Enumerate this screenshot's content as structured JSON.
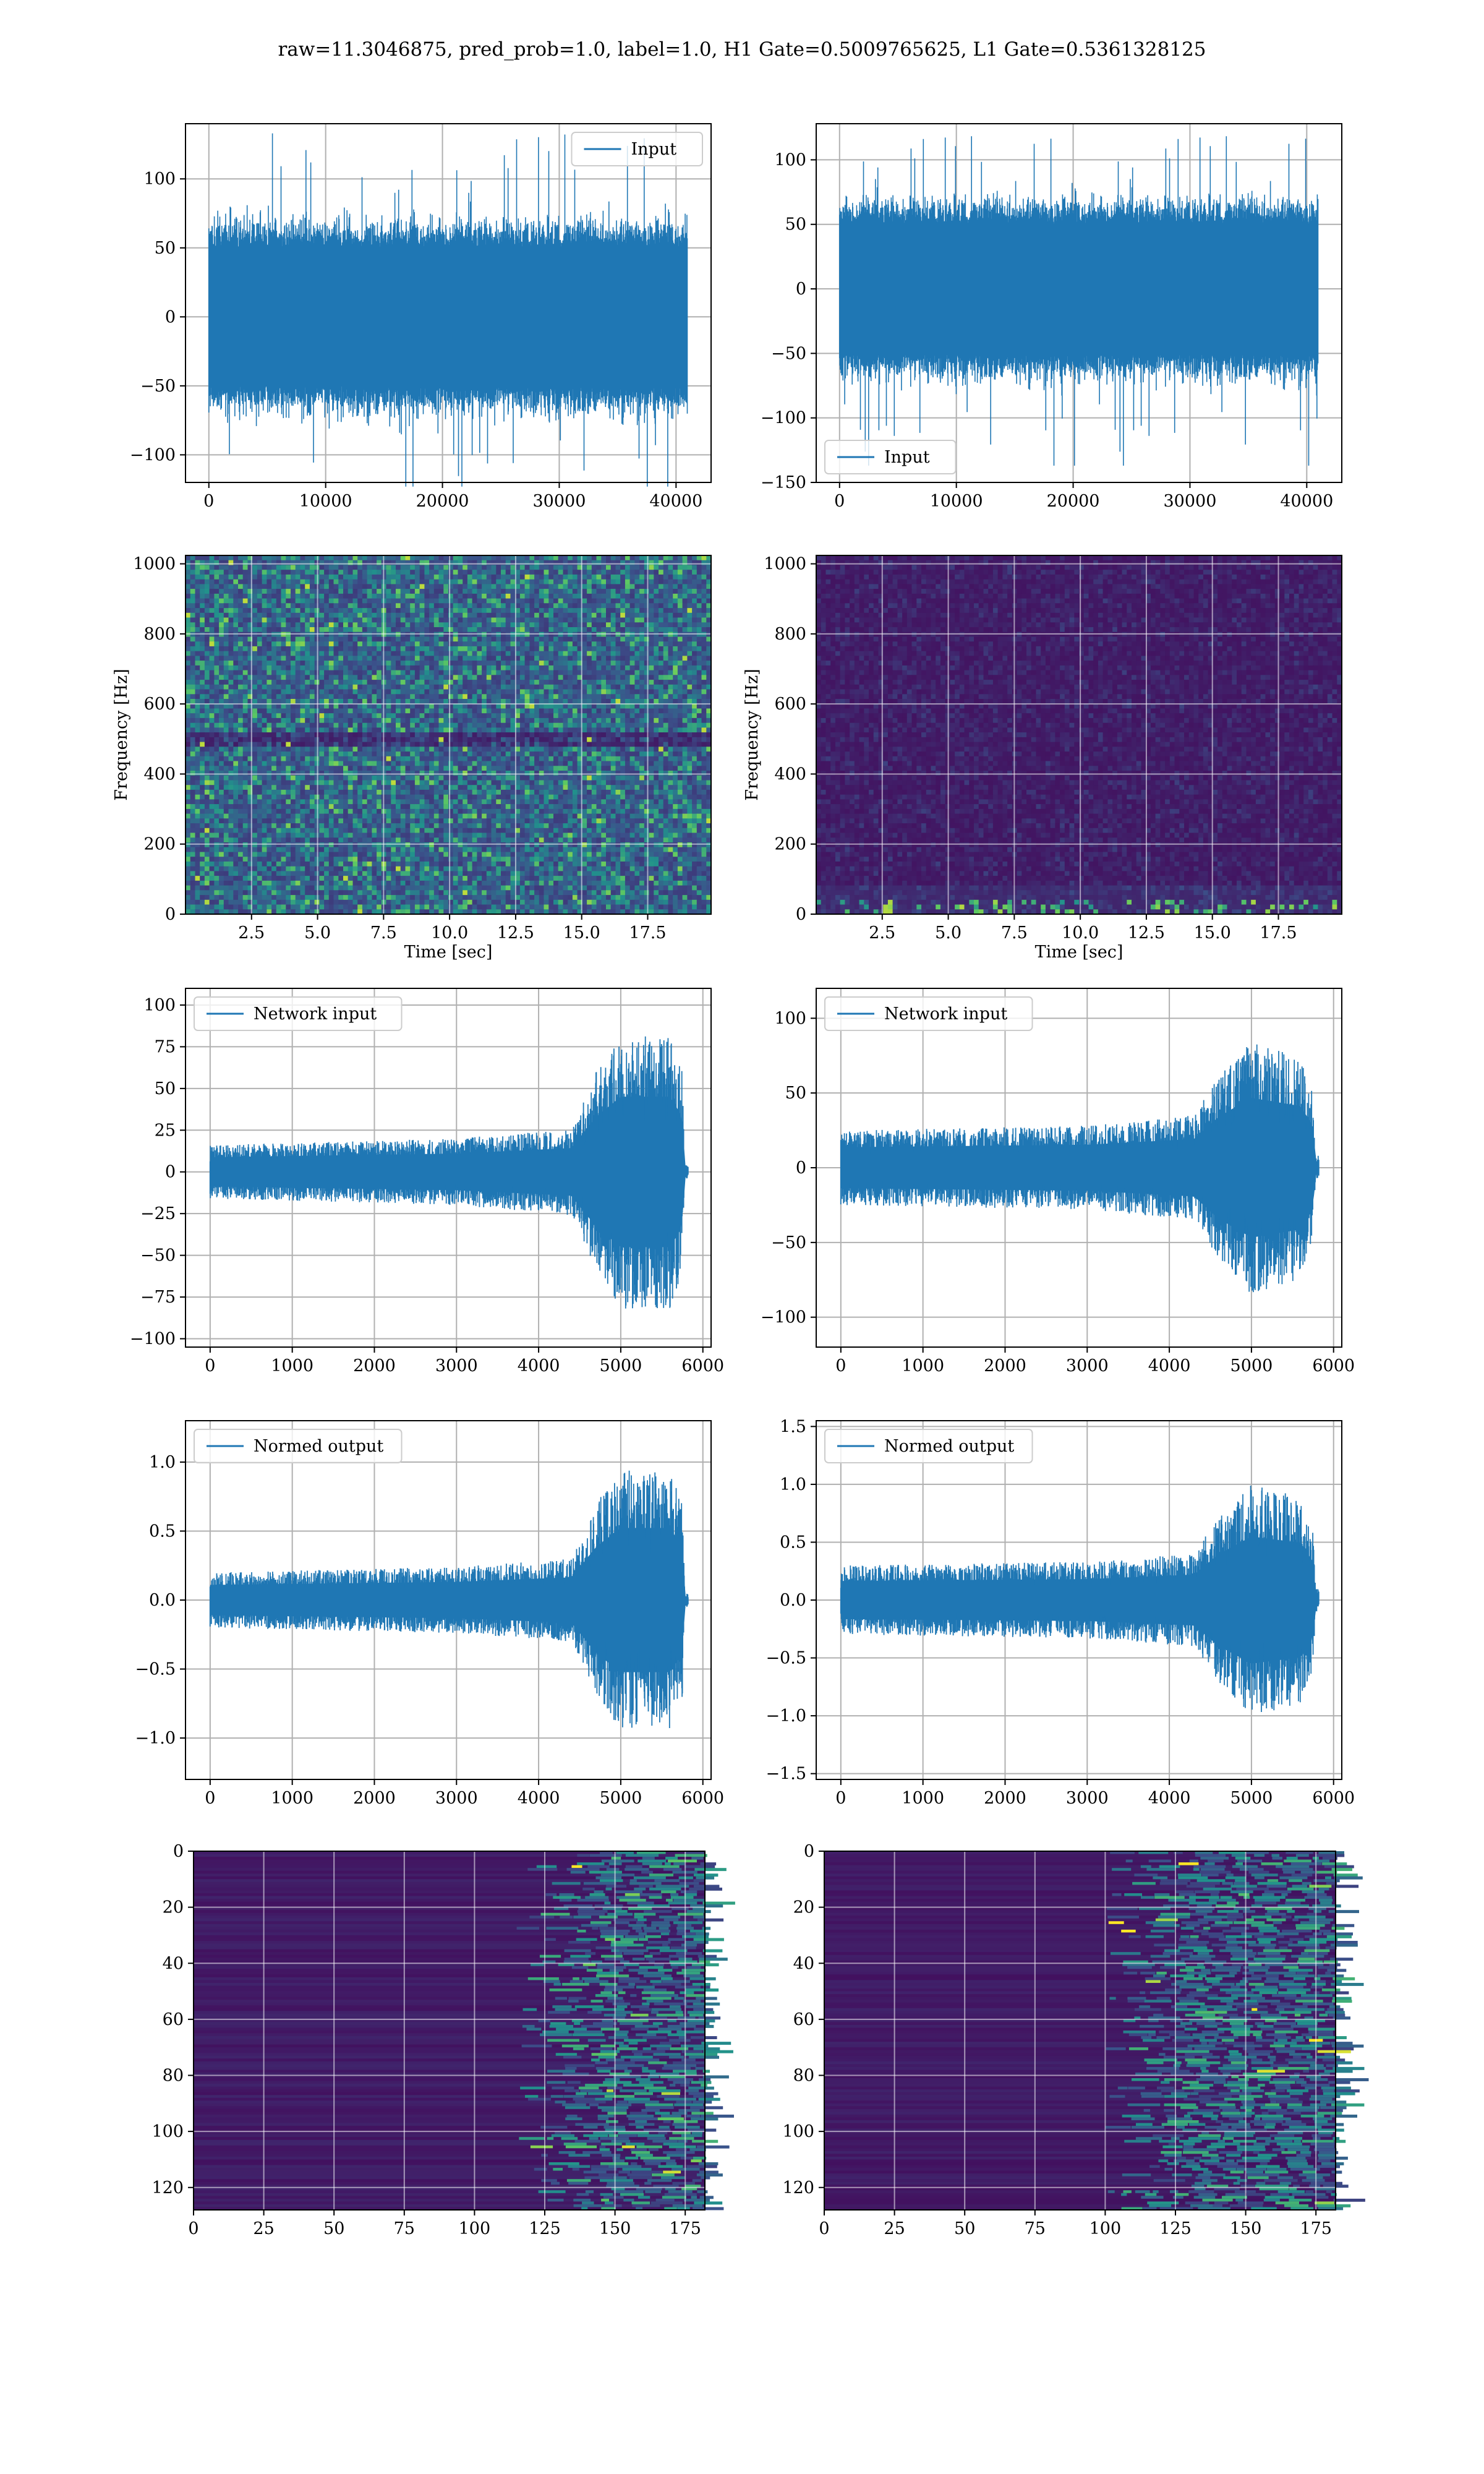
{
  "suptitle": "raw=11.3046875, pred_prob=1.0, label=1.0, H1 Gate=0.5009765625, L1 Gate=0.5361328125",
  "colors": {
    "line": "#1f77b4",
    "grid": "#b0b0b0",
    "viridis_low": "#440154",
    "viridis_mid": "#21918c",
    "viridis_high": "#fde725"
  },
  "chart_data": [
    {
      "id": "h1-input",
      "type": "line",
      "series": [
        {
          "name": "Input"
        }
      ],
      "legend": "upper right",
      "xlim": [
        -2000,
        43000
      ],
      "ylim": [
        -120,
        140
      ],
      "xticks": [
        0,
        10000,
        20000,
        30000,
        40000
      ],
      "yticks": [
        -100,
        -50,
        0,
        50,
        100
      ],
      "x_range": [
        0,
        40960
      ],
      "y_band": [
        -50,
        50
      ],
      "y_spikes_max": 133,
      "y_spikes_min": -123,
      "grid": true
    },
    {
      "id": "l1-input",
      "type": "line",
      "series": [
        {
          "name": "Input"
        }
      ],
      "legend": "lower left",
      "xlim": [
        -2000,
        43000
      ],
      "ylim": [
        -150,
        128
      ],
      "xticks": [
        0,
        10000,
        20000,
        30000,
        40000
      ],
      "yticks": [
        -150,
        -100,
        -50,
        0,
        50,
        100
      ],
      "x_range": [
        0,
        40960
      ],
      "y_band": [
        -50,
        50
      ],
      "y_spikes_max": 119,
      "y_spikes_min": -137,
      "grid": true
    },
    {
      "id": "h1-spectrogram",
      "type": "heatmap",
      "xlabel": "Time [sec]",
      "ylabel": "Frequency [Hz]",
      "xlim": [
        0,
        19.9
      ],
      "ylim": [
        0,
        1024
      ],
      "xticks": [
        2.5,
        5.0,
        7.5,
        10.0,
        12.5,
        15.0,
        17.5
      ],
      "yticks": [
        0,
        200,
        400,
        600,
        800,
        1000
      ],
      "colormap": "viridis",
      "intensity": "broadband noise, quiet band near 500 Hz",
      "grid": true
    },
    {
      "id": "l1-spectrogram",
      "type": "heatmap",
      "xlabel": "Time [sec]",
      "ylabel": "Frequency [Hz]",
      "xlim": [
        0,
        19.9
      ],
      "ylim": [
        0,
        1024
      ],
      "xticks": [
        2.5,
        5.0,
        7.5,
        10.0,
        12.5,
        15.0,
        17.5
      ],
      "yticks": [
        0,
        200,
        400,
        600,
        800,
        1000
      ],
      "colormap": "viridis",
      "intensity": "mostly dark, bright spots below 50 Hz",
      "grid": true
    },
    {
      "id": "h1-network-input",
      "type": "line",
      "series": [
        {
          "name": "Network input"
        }
      ],
      "legend": "upper left",
      "xlim": [
        -300,
        6100
      ],
      "ylim": [
        -105,
        110
      ],
      "xticks": [
        0,
        1000,
        2000,
        3000,
        4000,
        5000,
        6000
      ],
      "yticks": [
        -100,
        -75,
        -50,
        -25,
        0,
        25,
        50,
        75,
        100
      ],
      "x_range": [
        0,
        5820
      ],
      "envelope": [
        [
          0,
          16
        ],
        [
          3000,
          20
        ],
        [
          4400,
          26
        ],
        [
          4700,
          60
        ],
        [
          5000,
          82
        ],
        [
          5600,
          82
        ],
        [
          5750,
          60
        ],
        [
          5780,
          4
        ],
        [
          5820,
          4
        ]
      ],
      "grid": true
    },
    {
      "id": "l1-network-input",
      "type": "line",
      "series": [
        {
          "name": "Network input"
        }
      ],
      "legend": "upper left",
      "xlim": [
        -300,
        6100
      ],
      "ylim": [
        -120,
        120
      ],
      "xticks": [
        0,
        1000,
        2000,
        3000,
        4000,
        5000,
        6000
      ],
      "yticks": [
        -100,
        -50,
        0,
        50,
        100
      ],
      "x_range": [
        0,
        5820
      ],
      "envelope": [
        [
          0,
          25
        ],
        [
          3000,
          28
        ],
        [
          4300,
          35
        ],
        [
          4600,
          62
        ],
        [
          5000,
          85
        ],
        [
          5600,
          75
        ],
        [
          5750,
          50
        ],
        [
          5780,
          8
        ],
        [
          5820,
          8
        ]
      ],
      "grid": true
    },
    {
      "id": "h1-normed-output",
      "type": "line",
      "series": [
        {
          "name": "Normed output"
        }
      ],
      "legend": "upper left",
      "xlim": [
        -300,
        6100
      ],
      "ylim": [
        -1.3,
        1.3
      ],
      "xticks": [
        0,
        1000,
        2000,
        3000,
        4000,
        5000,
        6000
      ],
      "yticks": [
        -1.0,
        -0.5,
        0.0,
        0.5,
        1.0
      ],
      "x_range": [
        0,
        5820
      ],
      "envelope": [
        [
          0,
          0.2
        ],
        [
          3000,
          0.24
        ],
        [
          4400,
          0.3
        ],
        [
          4700,
          0.7
        ],
        [
          5000,
          0.95
        ],
        [
          5600,
          0.95
        ],
        [
          5750,
          0.7
        ],
        [
          5780,
          0.05
        ],
        [
          5820,
          0.05
        ]
      ],
      "grid": true
    },
    {
      "id": "l1-normed-output",
      "type": "line",
      "series": [
        {
          "name": "Normed output"
        }
      ],
      "legend": "upper left",
      "xlim": [
        -300,
        6100
      ],
      "ylim": [
        -1.55,
        1.55
      ],
      "xticks": [
        0,
        1000,
        2000,
        3000,
        4000,
        5000,
        6000
      ],
      "yticks": [
        -1.5,
        -1.0,
        -0.5,
        0.0,
        0.5,
        1.0,
        1.5
      ],
      "x_range": [
        0,
        5820
      ],
      "envelope": [
        [
          0,
          0.3
        ],
        [
          3000,
          0.33
        ],
        [
          4300,
          0.4
        ],
        [
          4600,
          0.72
        ],
        [
          5000,
          1.0
        ],
        [
          5600,
          0.9
        ],
        [
          5750,
          0.6
        ],
        [
          5780,
          0.1
        ],
        [
          5820,
          0.1
        ]
      ],
      "grid": true
    },
    {
      "id": "h1-feature-map",
      "type": "heatmap",
      "xlim": [
        0,
        182
      ],
      "ylim": [
        128,
        0
      ],
      "xticks": [
        0,
        25,
        50,
        75,
        100,
        125,
        150,
        175
      ],
      "yticks": [
        0,
        20,
        40,
        60,
        80,
        100,
        120
      ],
      "colormap": "viridis",
      "activation_onset": 115,
      "grid": true
    },
    {
      "id": "l1-feature-map",
      "type": "heatmap",
      "xlim": [
        0,
        182
      ],
      "ylim": [
        128,
        0
      ],
      "xticks": [
        0,
        25,
        50,
        75,
        100,
        125,
        150,
        175
      ],
      "yticks": [
        0,
        20,
        40,
        60,
        80,
        100,
        120
      ],
      "colormap": "viridis",
      "activation_onset": 100,
      "grid": true
    }
  ]
}
